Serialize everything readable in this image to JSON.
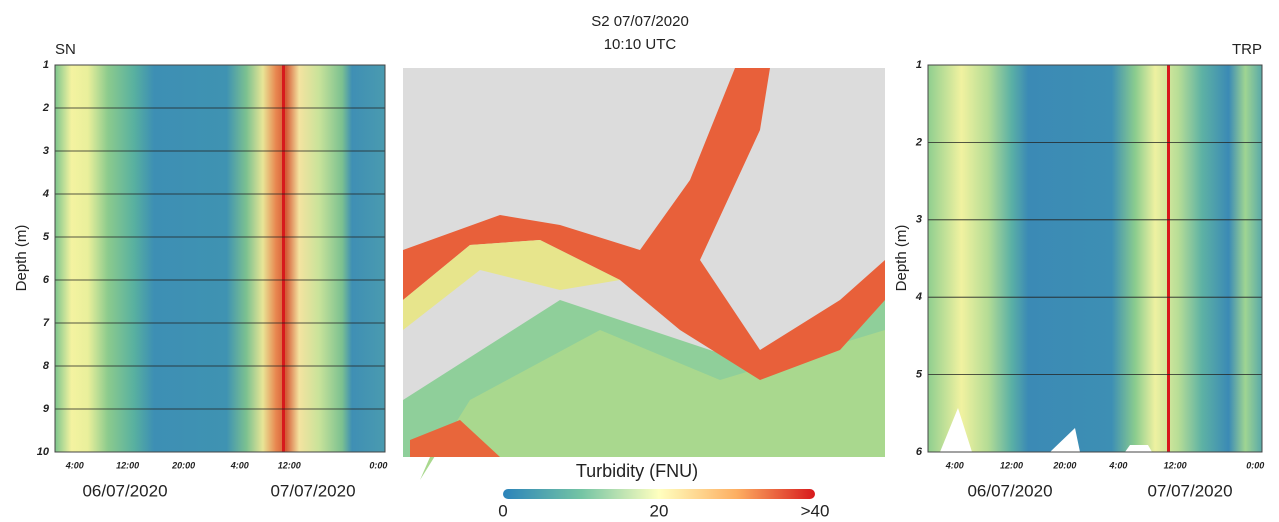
{
  "chart_data": [
    {
      "type": "contour",
      "title": "SN",
      "ylabel": "Depth (m)",
      "ylim": [
        1,
        10
      ],
      "yticks": [
        1,
        2,
        3,
        4,
        5,
        6,
        7,
        8,
        9,
        10
      ],
      "categories": [
        "4:00",
        "12:00",
        "20:00",
        "4:00",
        "12:00",
        "0:00"
      ],
      "dates": [
        "06/07/2020",
        "07/07/2020"
      ]
    },
    {
      "type": "map",
      "title": "S2 07/07/2020",
      "subtitle": "10:10 UTC",
      "colorbar_label": "Turbidity (FNU)",
      "clim": [
        0,
        40
      ],
      "cticks": [
        0,
        20,
        {
          "value": 40,
          "label": ">40"
        }
      ]
    },
    {
      "type": "contour",
      "title": "TRP",
      "ylabel": "Depth (m)",
      "ylim": [
        1,
        6
      ],
      "yticks": [
        1,
        2,
        3,
        4,
        5,
        6
      ],
      "categories": [
        "4:00",
        "12:00",
        "20:00",
        "4:00",
        "12:00",
        "0:00"
      ],
      "dates": [
        "06/07/2020",
        "07/07/2020"
      ]
    }
  ]
}
